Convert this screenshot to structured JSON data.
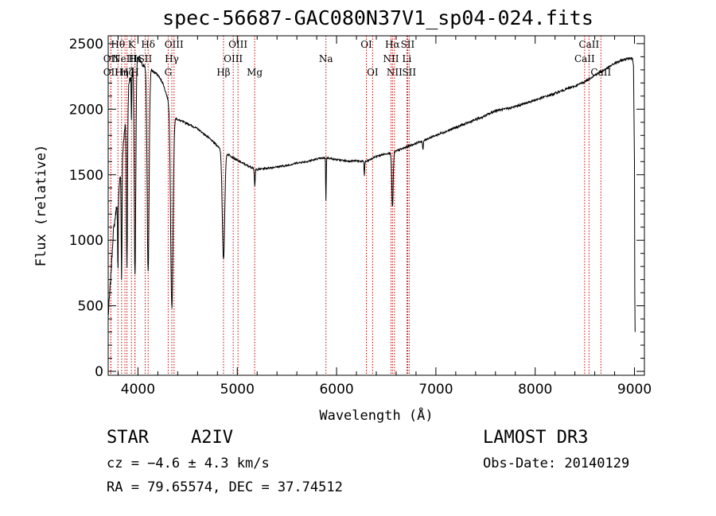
{
  "chart_data": {
    "type": "line",
    "title": "spec-56687-GAC080N37V1_sp04-024.fits",
    "xlabel": "Wavelength (Å)",
    "ylabel": "Flux (relative)",
    "xlim": [
      3700,
      9100
    ],
    "ylim": [
      -30,
      2560
    ],
    "xticks": [
      4000,
      5000,
      6000,
      7000,
      8000,
      9000
    ],
    "yticks": [
      0,
      500,
      1000,
      1500,
      2000,
      2500
    ],
    "xtick_labels": [
      "4000",
      "5000",
      "6000",
      "7000",
      "8000",
      "9000"
    ],
    "ytick_labels": [
      "0",
      "500",
      "1000",
      "1500",
      "2000",
      "2500"
    ],
    "grid": false,
    "line_color": "#000000",
    "marker_color": "#cc0000",
    "continuum": [
      [
        3700,
        420
      ],
      [
        3725,
        700
      ],
      [
        3750,
        1050
      ],
      [
        3800,
        1350
      ],
      [
        3850,
        1700
      ],
      [
        3900,
        2150
      ],
      [
        3950,
        2350
      ],
      [
        4000,
        2400
      ],
      [
        4050,
        2330
      ],
      [
        4100,
        2320
      ],
      [
        4150,
        2290
      ],
      [
        4200,
        2260
      ],
      [
        4250,
        2200
      ],
      [
        4300,
        2080
      ],
      [
        4350,
        1960
      ],
      [
        4400,
        1920
      ],
      [
        4500,
        1890
      ],
      [
        4600,
        1850
      ],
      [
        4700,
        1790
      ],
      [
        4800,
        1720
      ],
      [
        4900,
        1660
      ],
      [
        5000,
        1610
      ],
      [
        5100,
        1570
      ],
      [
        5200,
        1540
      ],
      [
        5300,
        1550
      ],
      [
        5400,
        1560
      ],
      [
        5500,
        1570
      ],
      [
        5600,
        1590
      ],
      [
        5700,
        1600
      ],
      [
        5800,
        1620
      ],
      [
        5900,
        1630
      ],
      [
        6000,
        1615
      ],
      [
        6100,
        1605
      ],
      [
        6200,
        1605
      ],
      [
        6300,
        1600
      ],
      [
        6400,
        1640
      ],
      [
        6500,
        1660
      ],
      [
        6600,
        1680
      ],
      [
        6700,
        1710
      ],
      [
        6800,
        1740
      ],
      [
        6900,
        1770
      ],
      [
        7000,
        1800
      ],
      [
        7100,
        1830
      ],
      [
        7200,
        1860
      ],
      [
        7300,
        1890
      ],
      [
        7400,
        1920
      ],
      [
        7500,
        1950
      ],
      [
        7600,
        1990
      ],
      [
        7700,
        2000
      ],
      [
        7800,
        2020
      ],
      [
        7900,
        2045
      ],
      [
        8000,
        2070
      ],
      [
        8100,
        2095
      ],
      [
        8200,
        2120
      ],
      [
        8300,
        2150
      ],
      [
        8400,
        2175
      ],
      [
        8500,
        2210
      ],
      [
        8600,
        2260
      ],
      [
        8700,
        2300
      ],
      [
        8800,
        2350
      ],
      [
        8900,
        2380
      ],
      [
        8950,
        2390
      ],
      [
        8980,
        2390
      ]
    ],
    "absorption_lines": [
      {
        "name": "H-theta",
        "center": 3798,
        "depth": 600,
        "width": 5
      },
      {
        "name": "H-eta",
        "center": 3835,
        "depth": 900,
        "width": 6
      },
      {
        "name": "H-zeta",
        "center": 3889,
        "depth": 1250,
        "width": 8
      },
      {
        "name": "H-epsilon",
        "center": 3970,
        "depth": 1650,
        "width": 11
      },
      {
        "name": "K",
        "center": 3934,
        "depth": 350,
        "width": 4
      },
      {
        "name": "H-delta",
        "center": 4102,
        "depth": 1550,
        "width": 14
      },
      {
        "name": "H-gamma",
        "center": 4341,
        "depth": 1500,
        "width": 17
      },
      {
        "name": "H-beta",
        "center": 4861,
        "depth": 830,
        "width": 17
      },
      {
        "name": "Mg",
        "center": 5176,
        "depth": 140,
        "width": 6
      },
      {
        "name": "Na",
        "center": 5893,
        "depth": 330,
        "width": 4
      },
      {
        "name": "Telluric",
        "center": 6280,
        "depth": 110,
        "width": 4
      },
      {
        "name": "H-alpha",
        "center": 6563,
        "depth": 420,
        "width": 10
      },
      {
        "name": "Telluric-A",
        "center": 6870,
        "depth": 70,
        "width": 6
      }
    ],
    "end_tail": [
      [
        8980,
        2390
      ],
      [
        8990,
        2330
      ],
      [
        9000,
        1600
      ],
      [
        9003,
        600
      ],
      [
        9006,
        300
      ]
    ],
    "line_markers": [
      {
        "wavelength": 3727,
        "label": "OII",
        "row": 1
      },
      {
        "wavelength": 3727,
        "label": "OII",
        "row": 2
      },
      {
        "wavelength": 3798,
        "label": "Hθ",
        "row": 0
      },
      {
        "wavelength": 3835,
        "label": "Hη",
        "row": 2
      },
      {
        "wavelength": 3869,
        "label": "NeIII",
        "row": 1
      },
      {
        "wavelength": 3889,
        "label": "Hζ",
        "row": 2
      },
      {
        "wavelength": 3934,
        "label": "K",
        "row": 0
      },
      {
        "wavelength": 3970,
        "label": "Hε",
        "row": 1
      },
      {
        "wavelength": 3969,
        "label": "H",
        "row": 2
      },
      {
        "wavelength": 4072,
        "label": "SII",
        "row": 1
      },
      {
        "wavelength": 4102,
        "label": "Hδ",
        "row": 0
      },
      {
        "wavelength": 4304,
        "label": "G",
        "row": 2
      },
      {
        "wavelength": 4341,
        "label": "Hγ",
        "row": 1
      },
      {
        "wavelength": 4363,
        "label": "OIII",
        "row": 0
      },
      {
        "wavelength": 4861,
        "label": "Hβ",
        "row": 2
      },
      {
        "wavelength": 4959,
        "label": "OIII",
        "row": 1
      },
      {
        "wavelength": 5007,
        "label": "OIII",
        "row": 0
      },
      {
        "wavelength": 5175,
        "label": "Mg",
        "row": 2
      },
      {
        "wavelength": 5893,
        "label": "Na",
        "row": 1
      },
      {
        "wavelength": 6300,
        "label": "OI",
        "row": 0
      },
      {
        "wavelength": 6363,
        "label": "OI",
        "row": 2
      },
      {
        "wavelength": 6548,
        "label": "NII",
        "row": 1
      },
      {
        "wavelength": 6563,
        "label": "Hα",
        "row": 0
      },
      {
        "wavelength": 6583,
        "label": "NII",
        "row": 2
      },
      {
        "wavelength": 6708,
        "label": "Li",
        "row": 1
      },
      {
        "wavelength": 6716,
        "label": "SII",
        "row": 0
      },
      {
        "wavelength": 6731,
        "label": "SII",
        "row": 2
      },
      {
        "wavelength": 8498,
        "label": "CaII",
        "row": 1
      },
      {
        "wavelength": 8542,
        "label": "CaII",
        "row": 0
      },
      {
        "wavelength": 8662,
        "label": "CaII",
        "row": 2
      }
    ]
  },
  "info": {
    "class": "STAR",
    "subclass": "A2IV",
    "survey": "LAMOST DR3",
    "cz": "cz = −4.6 ± 4.3 km/s",
    "obs_date": "Obs-Date: 20140129",
    "radec": "RA =  79.65574, DEC =  37.74512"
  }
}
